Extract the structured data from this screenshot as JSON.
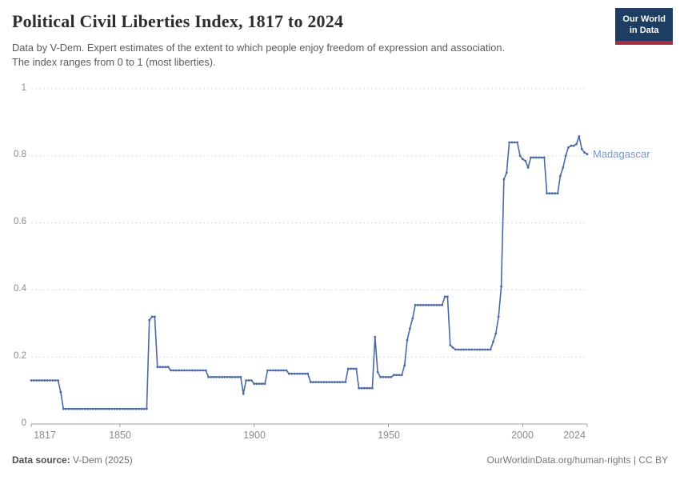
{
  "header": {
    "title": "Political Civil Liberties Index, 1817 to 2024",
    "subtitle_line1": "Data by V-Dem. Expert estimates of the extent to which people enjoy freedom of expression and association.",
    "subtitle_line2": "The index ranges from 0 to 1 (most liberties)."
  },
  "logo": {
    "line1": "Our World",
    "line2": "in Data"
  },
  "chart_data": {
    "type": "line",
    "title": "Political Civil Liberties Index, 1817 to 2024",
    "xlabel": "",
    "ylabel": "",
    "xlim": [
      1817,
      2024
    ],
    "ylim": [
      0,
      1
    ],
    "xticks": [
      1817,
      1850,
      1900,
      1950,
      2000,
      2024
    ],
    "xtick_labels": [
      "1817",
      "1850",
      "1900",
      "1950",
      "2000",
      "2024"
    ],
    "yticks": [
      0,
      0.2,
      0.4,
      0.6,
      0.8,
      1
    ],
    "ytick_labels": [
      "0",
      "0.2",
      "0.4",
      "0.6",
      "0.8",
      "1"
    ],
    "grid": "horizontal-dashed",
    "legend_position": "end-of-line-label",
    "line_color": "#4a69a2",
    "marker": "dot",
    "grid_color": "#dcdcdc",
    "axis_color": "#a3a3a3",
    "tick_label_color": "#8b8b8b",
    "series": [
      {
        "name": "Madagascar",
        "start_year": 1817,
        "end_year": 2024,
        "values": [
          0.13,
          0.13,
          0.13,
          0.13,
          0.13,
          0.13,
          0.13,
          0.13,
          0.13,
          0.13,
          0.13,
          0.095,
          0.045,
          0.045,
          0.045,
          0.045,
          0.045,
          0.045,
          0.045,
          0.045,
          0.045,
          0.045,
          0.045,
          0.045,
          0.045,
          0.045,
          0.045,
          0.045,
          0.045,
          0.045,
          0.045,
          0.045,
          0.045,
          0.045,
          0.045,
          0.045,
          0.045,
          0.045,
          0.045,
          0.045,
          0.045,
          0.045,
          0.045,
          0.045,
          0.31,
          0.32,
          0.32,
          0.17,
          0.17,
          0.17,
          0.17,
          0.17,
          0.16,
          0.16,
          0.16,
          0.16,
          0.16,
          0.16,
          0.16,
          0.16,
          0.16,
          0.16,
          0.16,
          0.16,
          0.16,
          0.16,
          0.14,
          0.14,
          0.14,
          0.14,
          0.14,
          0.14,
          0.14,
          0.14,
          0.14,
          0.14,
          0.14,
          0.14,
          0.14,
          0.09,
          0.13,
          0.13,
          0.13,
          0.12,
          0.12,
          0.12,
          0.12,
          0.12,
          0.16,
          0.16,
          0.16,
          0.16,
          0.16,
          0.16,
          0.16,
          0.16,
          0.15,
          0.15,
          0.15,
          0.15,
          0.15,
          0.15,
          0.15,
          0.15,
          0.125,
          0.125,
          0.125,
          0.125,
          0.125,
          0.125,
          0.125,
          0.125,
          0.125,
          0.125,
          0.125,
          0.125,
          0.125,
          0.125,
          0.165,
          0.165,
          0.165,
          0.165,
          0.107,
          0.107,
          0.107,
          0.107,
          0.107,
          0.107,
          0.26,
          0.155,
          0.14,
          0.14,
          0.14,
          0.14,
          0.14,
          0.146,
          0.146,
          0.146,
          0.146,
          0.175,
          0.25,
          0.285,
          0.315,
          0.355,
          0.355,
          0.355,
          0.355,
          0.355,
          0.355,
          0.355,
          0.355,
          0.355,
          0.355,
          0.355,
          0.38,
          0.38,
          0.235,
          0.228,
          0.222,
          0.222,
          0.222,
          0.222,
          0.222,
          0.222,
          0.222,
          0.222,
          0.222,
          0.222,
          0.222,
          0.222,
          0.222,
          0.222,
          0.245,
          0.27,
          0.32,
          0.41,
          0.73,
          0.75,
          0.84,
          0.84,
          0.84,
          0.84,
          0.8,
          0.79,
          0.785,
          0.765,
          0.795,
          0.795,
          0.795,
          0.795,
          0.795,
          0.795,
          0.688,
          0.688,
          0.688,
          0.688,
          0.688,
          0.74,
          0.765,
          0.8,
          0.825,
          0.83,
          0.83,
          0.835,
          0.858,
          0.82,
          0.81,
          0.805
        ]
      }
    ]
  },
  "footer": {
    "source_label": "Data source:",
    "source_value": " V-Dem (2025)",
    "link": "OurWorldinData.org/human-rights",
    "separator": " | ",
    "license": "CC BY"
  }
}
